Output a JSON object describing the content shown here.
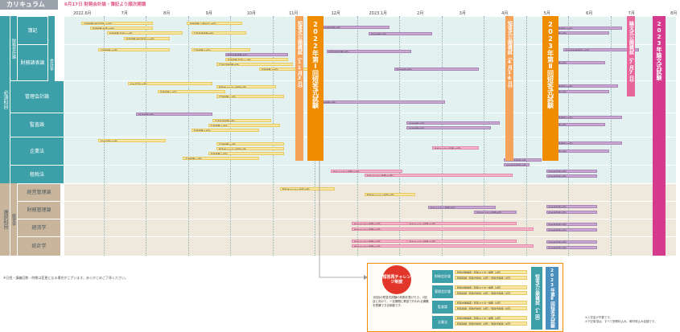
{
  "header": {
    "title": "カリキュラム",
    "note": "6月17日 財務会計論・簿記より順次開講"
  },
  "months": [
    "2022.6月",
    "7月",
    "8月",
    "9月",
    "10月",
    "11月",
    "12月",
    "2023.1月",
    "2月",
    "3月",
    "4月",
    "5月",
    "6月",
    "7月",
    "8月"
  ],
  "categories": [
    {
      "label": "必須科目"
    },
    {
      "label": "選択科目"
    }
  ],
  "groups": [
    {
      "label": "財務会計論"
    },
    {
      "label": "会計学"
    },
    {
      "label": "経営学"
    }
  ],
  "rows": [
    {
      "label": "簿記"
    },
    {
      "label": "財務諸表論"
    },
    {
      "label": "管理会計論"
    },
    {
      "label": "監査論"
    },
    {
      "label": "企業法"
    },
    {
      "label": "租税法"
    },
    {
      "label": "経営管理論"
    },
    {
      "label": "財務管理論"
    },
    {
      "label": "経済学"
    },
    {
      "label": "統計学"
    }
  ],
  "events": {
    "short1": "短答式公開模試（11月3日）",
    "exam1": "2022年第Ⅰ回短答式試験",
    "short2": "短答式公開模試（4月16日）",
    "exam2": "2023年第Ⅱ回短答式試験",
    "essay_mock": "論文式公開模試（7月7日）",
    "essay_exam": "2023年論文式試験"
  },
  "bars": [
    {
      "label": "基礎講義(簿記基礎)(15回)",
      "color": "y"
    },
    {
      "label": "基礎講義(計算)(5回)",
      "color": "y"
    },
    {
      "label": "基礎講義(基礎)(12回)",
      "color": "y"
    },
    {
      "label": "基礎講義(上級論点)(8回)",
      "color": "y"
    },
    {
      "label": "応用基礎講義(8回)",
      "color": "y"
    },
    {
      "label": "基礎講義(15回)",
      "color": "y"
    },
    {
      "label": "応用講義(27回)",
      "color": "y"
    },
    {
      "label": "短答対策講義(8回)",
      "color": "p"
    },
    {
      "label": "論文対策(5回)",
      "color": "p"
    },
    {
      "label": "論文基礎(20回)",
      "color": "y"
    },
    {
      "label": "短答式マスター講座(6回)",
      "color": "y"
    },
    {
      "label": "基礎講義(13回)",
      "color": "y"
    },
    {
      "label": "応用講義(12回)",
      "color": "y"
    },
    {
      "label": "論文対策(7回)",
      "color": "p"
    },
    {
      "label": "論文式対策講座(16回)",
      "color": "p"
    },
    {
      "label": "論文式答練(4回)",
      "color": "p"
    },
    {
      "label": "論文マスター講義(20回)",
      "color": "k"
    },
    {
      "label": "論文マスター講義(8回)",
      "color": "p"
    },
    {
      "label": "論文マスター講義(30回)",
      "color": "k"
    },
    {
      "label": "論文答案講座(3回)",
      "color": "p"
    }
  ],
  "footnote": "※日程・講義回数・時期は変更になる場合がございます。あらかじめご了承ください。",
  "challenge": {
    "circle": "短答再チャレンジ制度",
    "desc": "1回目の短答式試験の判断を受けたら、2回目に向けて、一定期間に教室で行われる講義を受講できる制度です。",
    "subjects": [
      "財務会計論",
      "管理会計論",
      "監査論",
      "企業法"
    ],
    "items": [
      "短答対策講座・短答マスター講義（1回）",
      "短答答練・短答式模試（2回）・短答式答練（3回）",
      "短答対策講座・短答マスター講義（1回）",
      "短答答練・短答式模試（2回）・短答式答練（3回）",
      "短答対策講座・短答マスター講義（1回）",
      "短答答練・短答式模試（2回）・短答式答練（3回）",
      "短答対策講座・短答マスター講義（1回）",
      "短答答練・短答式模試（2回）・短答式答練（3回）"
    ],
    "ev1": "短答式公開模試（1回）",
    "ev2": "2023年第Ⅱ回短答式試験"
  },
  "notes_right": [
    "※入学金が不要です。",
    "※下記事項は、すべて授業料込み。教材費込み金額です。"
  ],
  "colors": {
    "teal_label": "#3d9fa8",
    "tan_label": "#c9b59b",
    "light_teal_bg": "#e3f1f0",
    "light_tan_bg": "#efe8dd",
    "orange": "#f08c00",
    "magenta": "#d63a8c",
    "pink": "#e8669a"
  }
}
